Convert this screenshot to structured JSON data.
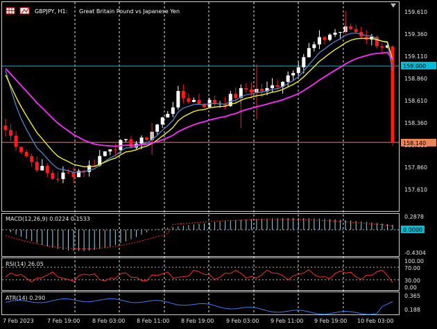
{
  "header": {
    "symbol_label": "GBPJPY, H1:",
    "instrument_name": "Great Britain Pound vs Japanese Yen"
  },
  "main_price_scale": {
    "ticks": [
      "159.610",
      "159.360",
      "159.110",
      "158.860",
      "158.610",
      "158.360",
      "158.110",
      "157.860",
      "157.610"
    ],
    "tick_values": [
      159.61,
      159.36,
      159.11,
      158.86,
      158.61,
      158.36,
      158.11,
      157.86,
      157.61
    ],
    "hline_upper_value": "159.000",
    "hline_lower_value": "158.140",
    "hline_upper_color": "#00bcd4",
    "hline_lower_color": "#e8865a",
    "current_price_label": "158.140"
  },
  "macd": {
    "label": "MACD(12,26,9) 0.0224 0.1533",
    "ticks": [
      "0.2878",
      "0.0000",
      "-0.4304"
    ],
    "histogram_color": "#9ad8e8",
    "signal_color": "#ff2a2a"
  },
  "rsi": {
    "label": "RSI(14) 26.05",
    "ticks": [
      "100.00",
      "70.00",
      "30.00",
      "0.00"
    ],
    "line_color": "#ff2a2a"
  },
  "atr": {
    "label": "ATR(14) 0.290",
    "ticks": [
      "0.365",
      "0.188"
    ],
    "line_color": "#3b7bff"
  },
  "time_axis": {
    "labels": [
      "7 Feb 2023",
      "7 Feb 19:00",
      "8 Feb 03:00",
      "8 Feb 11:00",
      "8 Feb 19:00",
      "9 Feb 03:00",
      "9 Feb 11:00",
      "9 Feb 19:00",
      "10 Feb 03:00"
    ]
  },
  "colors": {
    "bull": "#ffffff",
    "bear": "#ff1a1a",
    "ma_fast": "#4a7ec0",
    "ma_mid": "#f3f315",
    "ma_slow": "#ff2cff",
    "grid": "#ffffff",
    "axis_line": "#d0d0d0"
  }
}
